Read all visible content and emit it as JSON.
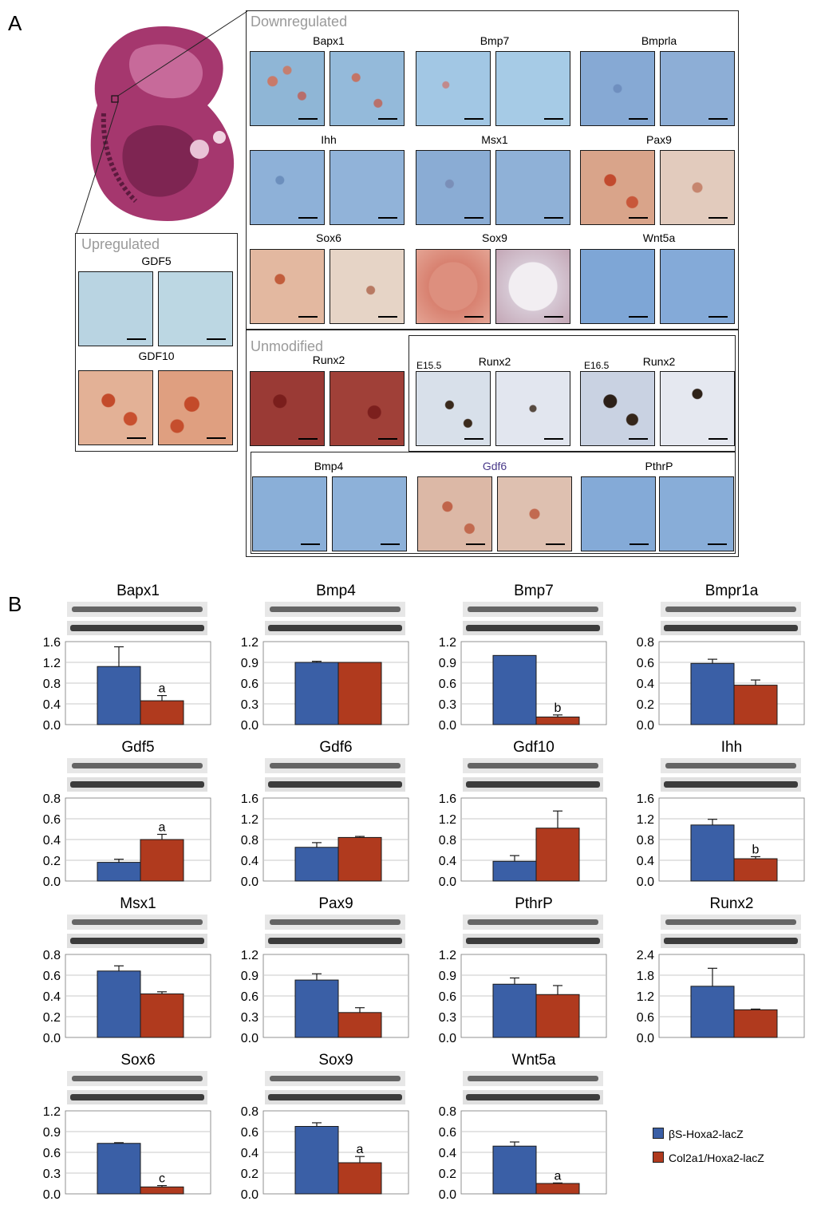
{
  "figure": {
    "panel_a": "A",
    "panel_b": "B",
    "groups": {
      "downregulated": "Downregulated",
      "upregulated": "Upregulated",
      "unmodified": "Unmodified"
    },
    "histology": {
      "downregulated_genes": [
        "Bapx1",
        "Bmp7",
        "Bmprla",
        "Ihh",
        "Msx1",
        "Pax9",
        "Sox6",
        "Sox9",
        "Wnt5a"
      ],
      "upregulated_genes": [
        "GDF5",
        "GDF10"
      ],
      "unmodified_genes": [
        "Runx2",
        "Bmp4",
        "Gdf6",
        "PthrP"
      ],
      "runx2_stages": [
        {
          "stage": "E15.5",
          "gene": "Runx2"
        },
        {
          "stage": "E16.5",
          "gene": "Runx2"
        }
      ]
    },
    "legend": {
      "series_1": "βS-Hoxa2-lacZ",
      "series_2": "Col2a1/Hoxa2-lacZ",
      "color_1": "#3a5fa6",
      "color_2": "#b03a1e"
    }
  },
  "chart_data": [
    {
      "type": "bar",
      "title": "Bapx1",
      "categories": [
        "βS-Hoxa2-lacZ",
        "Col2a1/Hoxa2-lacZ"
      ],
      "values": [
        1.12,
        0.46
      ],
      "errors": [
        0.38,
        0.1
      ],
      "annotations": [
        "",
        "a"
      ],
      "yticks": [
        "0.0",
        "0.4",
        "0.8",
        "1.2",
        "1.6"
      ],
      "ylim": [
        0,
        1.6
      ]
    },
    {
      "type": "bar",
      "title": "Bmp4",
      "categories": [
        "βS-Hoxa2-lacZ",
        "Col2a1/Hoxa2-lacZ"
      ],
      "values": [
        0.9,
        0.9
      ],
      "errors": [
        0.015,
        0
      ],
      "annotations": [
        "",
        ""
      ],
      "yticks": [
        "0.0",
        "0.3",
        "0.6",
        "0.9",
        "1.2"
      ],
      "ylim": [
        0,
        1.2
      ]
    },
    {
      "type": "bar",
      "title": "Bmp7",
      "categories": [
        "βS-Hoxa2-lacZ",
        "Col2a1/Hoxa2-lacZ"
      ],
      "values": [
        1.0,
        0.11
      ],
      "errors": [
        0,
        0.03
      ],
      "annotations": [
        "",
        "b"
      ],
      "yticks": [
        "0.0",
        "0.3",
        "0.6",
        "0.9",
        "1.2"
      ],
      "ylim": [
        0,
        1.2
      ]
    },
    {
      "type": "bar",
      "title": "Bmpr1a",
      "categories": [
        "βS-Hoxa2-lacZ",
        "Col2a1/Hoxa2-lacZ"
      ],
      "values": [
        0.59,
        0.38
      ],
      "errors": [
        0.04,
        0.05
      ],
      "annotations": [
        "",
        ""
      ],
      "yticks": [
        "0.0",
        "0.2",
        "0.4",
        "0.6",
        "0.8"
      ],
      "ylim": [
        0,
        0.8
      ]
    },
    {
      "type": "bar",
      "title": "Gdf5",
      "categories": [
        "βS-Hoxa2-lacZ",
        "Col2a1/Hoxa2-lacZ"
      ],
      "values": [
        0.18,
        0.4
      ],
      "errors": [
        0.03,
        0.05
      ],
      "annotations": [
        "",
        "a"
      ],
      "yticks": [
        "0.0",
        "0.2",
        "0.4",
        "0.6",
        "0.8"
      ],
      "ylim": [
        0,
        0.8
      ]
    },
    {
      "type": "bar",
      "title": "Gdf6",
      "categories": [
        "βS-Hoxa2-lacZ",
        "Col2a1/Hoxa2-lacZ"
      ],
      "values": [
        0.65,
        0.84
      ],
      "errors": [
        0.09,
        0.02
      ],
      "annotations": [
        "",
        ""
      ],
      "yticks": [
        "0.0",
        "0.4",
        "0.8",
        "1.2",
        "1.6"
      ],
      "ylim": [
        0,
        1.6
      ]
    },
    {
      "type": "bar",
      "title": "Gdf10",
      "categories": [
        "βS-Hoxa2-lacZ",
        "Col2a1/Hoxa2-lacZ"
      ],
      "values": [
        0.38,
        1.02
      ],
      "errors": [
        0.11,
        0.33
      ],
      "annotations": [
        "",
        ""
      ],
      "yticks": [
        "0.0",
        "0.4",
        "0.8",
        "1.2",
        "1.6"
      ],
      "ylim": [
        0,
        1.6
      ]
    },
    {
      "type": "bar",
      "title": "Ihh",
      "categories": [
        "βS-Hoxa2-lacZ",
        "Col2a1/Hoxa2-lacZ"
      ],
      "values": [
        1.08,
        0.43
      ],
      "errors": [
        0.11,
        0.04
      ],
      "annotations": [
        "",
        "b"
      ],
      "yticks": [
        "0.0",
        "0.4",
        "0.8",
        "1.2",
        "1.6"
      ],
      "ylim": [
        0,
        1.6
      ]
    },
    {
      "type": "bar",
      "title": "Msx1",
      "categories": [
        "βS-Hoxa2-lacZ",
        "Col2a1/Hoxa2-lacZ"
      ],
      "values": [
        0.64,
        0.42
      ],
      "errors": [
        0.05,
        0.02
      ],
      "annotations": [
        "",
        ""
      ],
      "yticks": [
        "0.0",
        "0.2",
        "0.4",
        "0.6",
        "0.8"
      ],
      "ylim": [
        0,
        0.8
      ]
    },
    {
      "type": "bar",
      "title": "Pax9",
      "categories": [
        "βS-Hoxa2-lacZ",
        "Col2a1/Hoxa2-lacZ"
      ],
      "values": [
        0.83,
        0.36
      ],
      "errors": [
        0.09,
        0.07
      ],
      "annotations": [
        "",
        ""
      ],
      "yticks": [
        "0.0",
        "0.3",
        "0.6",
        "0.9",
        "1.2"
      ],
      "ylim": [
        0,
        1.2
      ]
    },
    {
      "type": "bar",
      "title": "PthrP",
      "categories": [
        "βS-Hoxa2-lacZ",
        "Col2a1/Hoxa2-lacZ"
      ],
      "values": [
        0.77,
        0.62
      ],
      "errors": [
        0.09,
        0.13
      ],
      "annotations": [
        "",
        ""
      ],
      "yticks": [
        "0.0",
        "0.3",
        "0.6",
        "0.9",
        "1.2"
      ],
      "ylim": [
        0,
        1.2
      ]
    },
    {
      "type": "bar",
      "title": "Runx2",
      "categories": [
        "βS-Hoxa2-lacZ",
        "Col2a1/Hoxa2-lacZ"
      ],
      "values": [
        1.48,
        0.8
      ],
      "errors": [
        0.52,
        0.02
      ],
      "annotations": [
        "",
        ""
      ],
      "yticks": [
        "0.0",
        "0.6",
        "1.2",
        "1.8",
        "2.4"
      ],
      "ylim": [
        0,
        2.4
      ]
    },
    {
      "type": "bar",
      "title": "Sox6",
      "categories": [
        "βS-Hoxa2-lacZ",
        "Col2a1/Hoxa2-lacZ"
      ],
      "values": [
        0.73,
        0.1
      ],
      "errors": [
        0.01,
        0.02
      ],
      "annotations": [
        "",
        "c"
      ],
      "yticks": [
        "0.0",
        "0.3",
        "0.6",
        "0.9",
        "1.2"
      ],
      "ylim": [
        0,
        1.2
      ]
    },
    {
      "type": "bar",
      "title": "Sox9",
      "categories": [
        "βS-Hoxa2-lacZ",
        "Col2a1/Hoxa2-lacZ"
      ],
      "values": [
        0.65,
        0.3
      ],
      "errors": [
        0.035,
        0.06
      ],
      "annotations": [
        "",
        "a"
      ],
      "yticks": [
        "0.0",
        "0.2",
        "0.4",
        "0.6",
        "0.8"
      ],
      "ylim": [
        0,
        0.8
      ]
    },
    {
      "type": "bar",
      "title": "Wnt5a",
      "categories": [
        "βS-Hoxa2-lacZ",
        "Col2a1/Hoxa2-lacZ"
      ],
      "values": [
        0.46,
        0.1
      ],
      "errors": [
        0.04,
        0.005
      ],
      "annotations": [
        "",
        "a"
      ],
      "yticks": [
        "0.0",
        "0.2",
        "0.4",
        "0.6",
        "0.8"
      ],
      "ylim": [
        0,
        0.8
      ]
    }
  ]
}
